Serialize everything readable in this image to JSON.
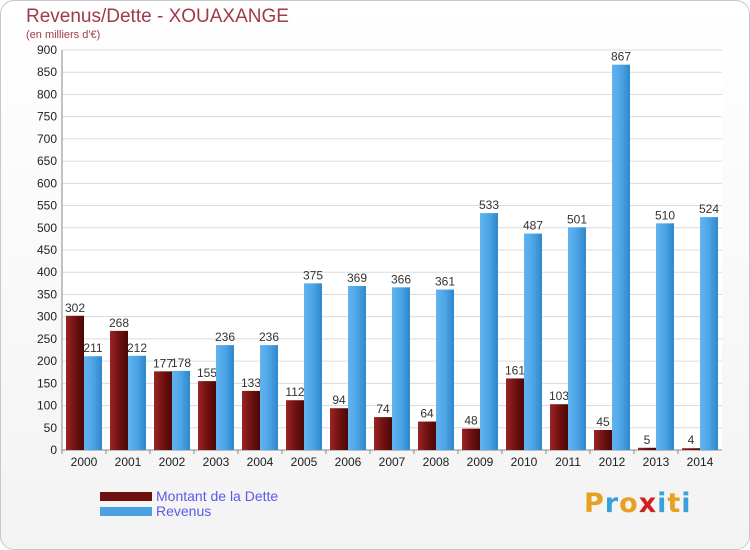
{
  "title": "Revenus/Dette - XOUAXANGE",
  "subtitle": "(en milliers d'€)",
  "brand": {
    "letters": [
      "P",
      "r",
      "o",
      "x",
      "i",
      "t",
      "i"
    ],
    "colors": [
      "#e8a020",
      "#3aa0d8",
      "#e8a020",
      "#d02020",
      "#3aa0d8",
      "#e8a020",
      "#3aa0d8"
    ]
  },
  "chart_data": {
    "type": "bar",
    "categories": [
      "2000",
      "2001",
      "2002",
      "2003",
      "2004",
      "2005",
      "2006",
      "2007",
      "2008",
      "2009",
      "2010",
      "2011",
      "2012",
      "2013",
      "2014"
    ],
    "series": [
      {
        "name": "Montant de la Dette",
        "color": "#6e1010",
        "values": [
          302,
          268,
          177,
          155,
          133,
          112,
          94,
          74,
          64,
          48,
          161,
          103,
          45,
          5,
          4
        ]
      },
      {
        "name": "Revenus",
        "color": "#4aa2e4",
        "values": [
          211,
          212,
          178,
          236,
          236,
          375,
          369,
          366,
          361,
          533,
          487,
          501,
          867,
          510,
          524
        ]
      }
    ],
    "ylim": [
      0,
      900
    ],
    "yticks": [
      0,
      50,
      100,
      150,
      200,
      250,
      300,
      350,
      400,
      450,
      500,
      550,
      600,
      650,
      700,
      750,
      800,
      850,
      900
    ],
    "grid": true,
    "legend": "bottom-left"
  }
}
